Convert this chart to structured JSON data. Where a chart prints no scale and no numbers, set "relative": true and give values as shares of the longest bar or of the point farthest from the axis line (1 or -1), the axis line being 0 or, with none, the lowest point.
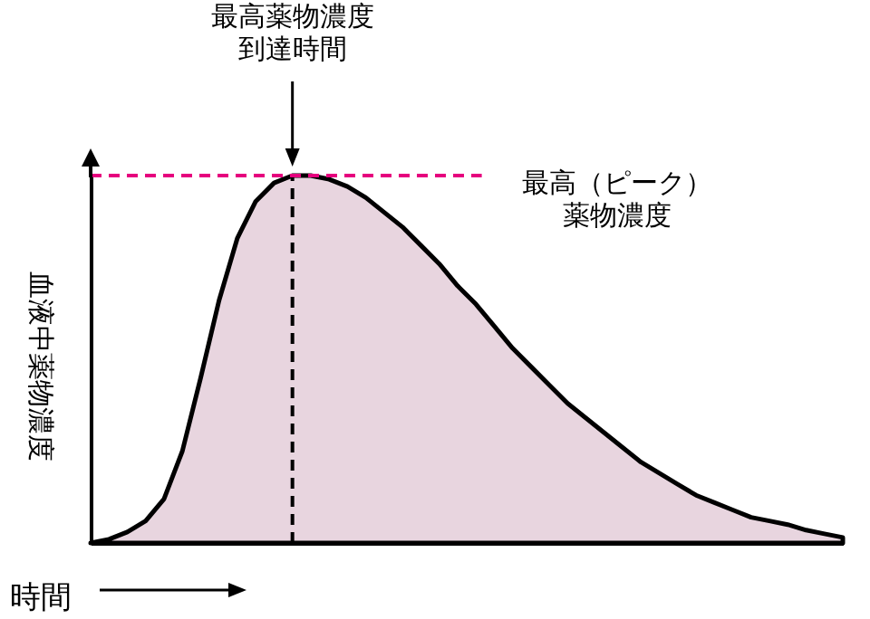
{
  "chart_data": {
    "type": "area",
    "relative": true,
    "xlabel": "時間",
    "ylabel": "血液中薬物濃度",
    "categories": [
      null,
      null,
      null,
      null,
      null,
      null,
      null,
      null,
      null,
      null,
      null,
      null,
      null,
      null,
      null,
      null,
      null,
      null,
      null,
      null,
      null,
      null,
      null,
      null,
      null,
      null,
      null,
      null,
      null,
      null,
      null,
      null,
      null,
      null,
      null,
      null,
      null,
      null,
      null,
      null,
      null,
      null
    ],
    "series": [
      {
        "color": "#e8d5df",
        "values": [
          0,
          0.01,
          0.03,
          0.06,
          0.12,
          0.25,
          0.45,
          0.66,
          0.83,
          0.93,
          0.98,
          1,
          1,
          0.99,
          0.97,
          0.94,
          0.9,
          0.86,
          0.81,
          0.76,
          0.7,
          0.65,
          0.59,
          0.53,
          0.48,
          0.43,
          0.38,
          0.34,
          0.3,
          0.26,
          0.22,
          0.19,
          0.16,
          0.13,
          0.11,
          0.09,
          0.07,
          0.06,
          0.05,
          0.035,
          0.025,
          0.015
        ]
      }
    ],
    "annotations": [
      "最高薬物濃度到達時間"
    ],
    "ref_lines": [
      {
        "axis": "y",
        "value": 1,
        "label": "最高（ピーク）薬物濃度",
        "color": "#e6007e",
        "line_style": "dashed"
      }
    ]
  }
}
